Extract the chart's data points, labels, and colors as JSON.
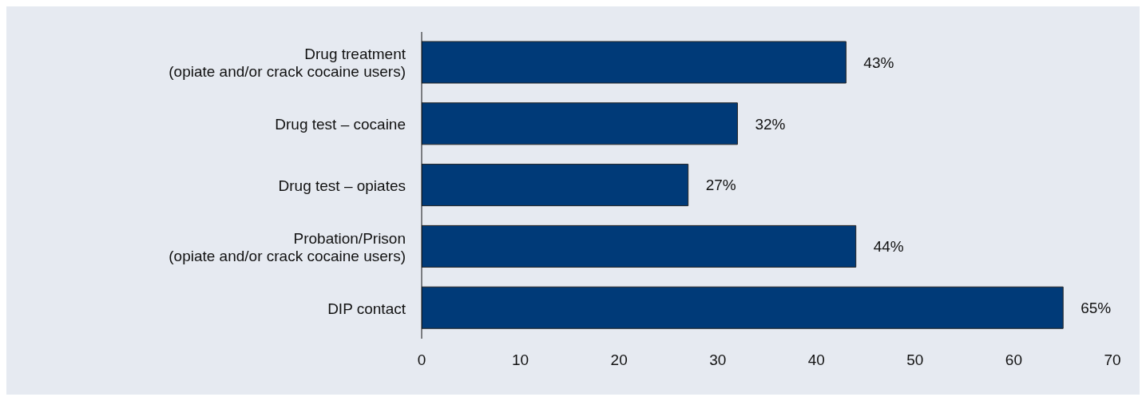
{
  "chart_data": {
    "type": "bar",
    "orientation": "horizontal",
    "categories": [
      "Drug treatment\n(opiate and/or crack cocaine users)",
      "Drug test – cocaine",
      "Drug test – opiates",
      "Probation/Prison\n(opiate and/or crack cocaine users)",
      "DIP contact"
    ],
    "values": [
      43,
      32,
      27,
      44,
      65
    ],
    "value_labels": [
      "43%",
      "32%",
      "27%",
      "44%",
      "65%"
    ],
    "color": "#003a78",
    "xlim": [
      0,
      70
    ],
    "xticks": [
      0,
      10,
      20,
      30,
      40,
      50,
      60,
      70
    ],
    "grid": false
  }
}
